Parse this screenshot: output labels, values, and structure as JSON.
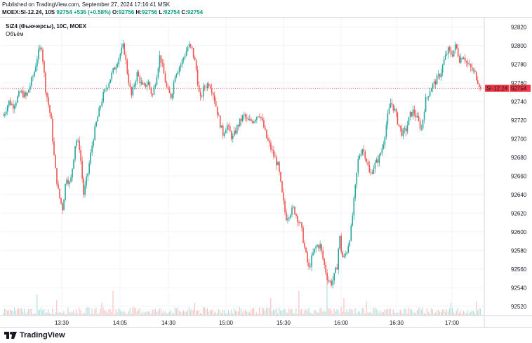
{
  "header": {
    "published": "Published on TradingView.com, September 27, 2024 17:16:41 MSK",
    "symbol_line": "MOEX:SI-12.24, 10S",
    "price": "92754",
    "change": "+536 (+0.58%)",
    "open_label": "O:",
    "open": "92756",
    "high_label": "H:",
    "high": "92756",
    "low_label": "L:",
    "low": "92754",
    "close_label": "C:",
    "close": "92754"
  },
  "legend": {
    "title": "SiZ4 (Фьючерсы), 10С, MOEX",
    "volume_label": "Объём"
  },
  "footer": {
    "brand": "TradingView"
  },
  "colors": {
    "up": "#26a69a",
    "down": "#ef5350",
    "last": "#f23645",
    "grid": "#f0f3fa"
  },
  "chart_data": {
    "type": "candlestick",
    "symbol": "SI-12.24",
    "timeframe": "10S",
    "x_ticks": [
      "13:30",
      "14:05",
      "14:30",
      "15:00",
      "15:30",
      "16:00",
      "16:30",
      "17:00"
    ],
    "y_ticks": [
      92520,
      92540,
      92560,
      92580,
      92600,
      92620,
      92640,
      92660,
      92680,
      92700,
      92720,
      92740,
      92760,
      92780,
      92800,
      92820
    ],
    "ylim": [
      92510,
      92830
    ],
    "last_price": 92754,
    "last_label": "SI-12.24",
    "path": [
      [
        0,
        92725
      ],
      [
        3,
        92740
      ],
      [
        5,
        92735
      ],
      [
        9,
        92750
      ],
      [
        12,
        92745
      ],
      [
        16,
        92770
      ],
      [
        18,
        92790
      ],
      [
        20,
        92800
      ],
      [
        22,
        92755
      ],
      [
        25,
        92720
      ],
      [
        27,
        92670
      ],
      [
        29,
        92640
      ],
      [
        31,
        92625
      ],
      [
        33,
        92660
      ],
      [
        35,
        92650
      ],
      [
        38,
        92700
      ],
      [
        40,
        92690
      ],
      [
        42,
        92640
      ],
      [
        44,
        92660
      ],
      [
        47,
        92700
      ],
      [
        49,
        92720
      ],
      [
        52,
        92745
      ],
      [
        55,
        92760
      ],
      [
        58,
        92775
      ],
      [
        61,
        92790
      ],
      [
        63,
        92800
      ],
      [
        65,
        92770
      ],
      [
        67,
        92745
      ],
      [
        70,
        92770
      ],
      [
        73,
        92755
      ],
      [
        76,
        92760
      ],
      [
        78,
        92745
      ],
      [
        80,
        92765
      ],
      [
        82,
        92790
      ],
      [
        84,
        92770
      ],
      [
        86,
        92750
      ],
      [
        88,
        92745
      ],
      [
        90,
        92770
      ],
      [
        93,
        92780
      ],
      [
        95,
        92790
      ],
      [
        97,
        92800
      ],
      [
        99,
        92795
      ],
      [
        101,
        92775
      ],
      [
        103,
        92740
      ],
      [
        105,
        92755
      ],
      [
        108,
        92760
      ],
      [
        110,
        92748
      ],
      [
        113,
        92720
      ],
      [
        115,
        92705
      ],
      [
        117,
        92715
      ],
      [
        120,
        92700
      ],
      [
        123,
        92715
      ],
      [
        126,
        92725
      ],
      [
        128,
        92718
      ],
      [
        131,
        92720
      ],
      [
        134,
        92728
      ],
      [
        136,
        92715
      ],
      [
        138,
        92700
      ],
      [
        140,
        92690
      ],
      [
        142,
        92680
      ],
      [
        144,
        92670
      ],
      [
        146,
        92640
      ],
      [
        148,
        92615
      ],
      [
        150,
        92620
      ],
      [
        152,
        92625
      ],
      [
        154,
        92615
      ],
      [
        156,
        92605
      ],
      [
        158,
        92580
      ],
      [
        160,
        92560
      ],
      [
        162,
        92575
      ],
      [
        164,
        92585
      ],
      [
        166,
        92585
      ],
      [
        168,
        92565
      ],
      [
        170,
        92548
      ],
      [
        172,
        92545
      ],
      [
        173,
        92550
      ],
      [
        175,
        92565
      ],
      [
        176,
        92598
      ],
      [
        177,
        92580
      ],
      [
        178,
        92570
      ],
      [
        180,
        92580
      ],
      [
        182,
        92600
      ],
      [
        184,
        92640
      ],
      [
        186,
        92680
      ],
      [
        188,
        92690
      ],
      [
        190,
        92680
      ],
      [
        192,
        92660
      ],
      [
        194,
        92670
      ],
      [
        197,
        92680
      ],
      [
        199,
        92695
      ],
      [
        201,
        92720
      ],
      [
        203,
        92740
      ],
      [
        205,
        92730
      ],
      [
        207,
        92715
      ],
      [
        209,
        92705
      ],
      [
        211,
        92710
      ],
      [
        213,
        92725
      ],
      [
        215,
        92730
      ],
      [
        217,
        92720
      ],
      [
        219,
        92710
      ],
      [
        221,
        92740
      ],
      [
        224,
        92755
      ],
      [
        226,
        92760
      ],
      [
        229,
        92770
      ],
      [
        231,
        92785
      ],
      [
        233,
        92795
      ],
      [
        235,
        92790
      ],
      [
        237,
        92800
      ],
      [
        239,
        92785
      ],
      [
        241,
        92790
      ],
      [
        243,
        92780
      ],
      [
        245,
        92775
      ],
      [
        247,
        92770
      ],
      [
        249,
        92760
      ],
      [
        250,
        92754
      ]
    ],
    "volume": {
      "base": 2,
      "spikes": [
        [
          14,
          45
        ],
        [
          18,
          30
        ],
        [
          28,
          22
        ],
        [
          52,
          18
        ],
        [
          58,
          35
        ],
        [
          70,
          20
        ],
        [
          95,
          28
        ],
        [
          100,
          18
        ],
        [
          140,
          25
        ],
        [
          155,
          35
        ],
        [
          160,
          60
        ],
        [
          163,
          30
        ],
        [
          170,
          45
        ],
        [
          175,
          35
        ],
        [
          178,
          25
        ],
        [
          190,
          20
        ],
        [
          222,
          22
        ],
        [
          235,
          18
        ],
        [
          248,
          20
        ]
      ]
    }
  }
}
